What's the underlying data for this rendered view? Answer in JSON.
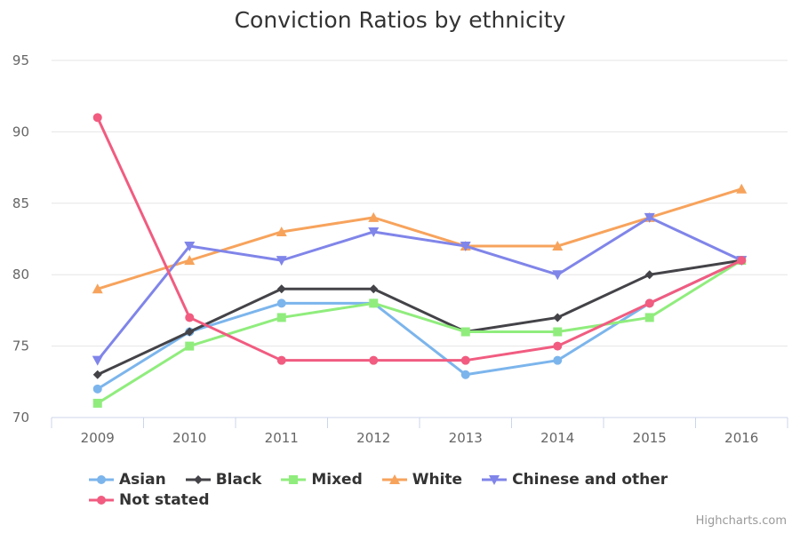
{
  "chart_data": {
    "type": "line",
    "title": "Conviction Ratios by ethnicity",
    "xlabel": "",
    "ylabel": "",
    "categories": [
      "2009",
      "2010",
      "2011",
      "2012",
      "2013",
      "2014",
      "2015",
      "2016"
    ],
    "ylim": [
      70,
      95
    ],
    "yticks": [
      70,
      75,
      80,
      85,
      90,
      95
    ],
    "grid": true,
    "legend_position": "bottom",
    "series": [
      {
        "name": "Asian",
        "color": "#7cb5ec",
        "marker": "circle",
        "values": [
          72,
          76,
          78,
          78,
          73,
          74,
          78,
          81
        ]
      },
      {
        "name": "Black",
        "color": "#434348",
        "marker": "diamond",
        "values": [
          73,
          76,
          79,
          79,
          76,
          77,
          80,
          81
        ]
      },
      {
        "name": "Mixed",
        "color": "#90ed7d",
        "marker": "square",
        "values": [
          71,
          75,
          77,
          78,
          76,
          76,
          77,
          81
        ]
      },
      {
        "name": "White",
        "color": "#f7a35c",
        "marker": "triangle",
        "values": [
          79,
          81,
          83,
          84,
          82,
          82,
          84,
          86
        ]
      },
      {
        "name": "Chinese and other",
        "color": "#8085e9",
        "marker": "triangle-down",
        "values": [
          74,
          82,
          81,
          83,
          82,
          80,
          84,
          81
        ]
      },
      {
        "name": "Not stated",
        "color": "#f15c80",
        "marker": "circle",
        "values": [
          91,
          77,
          74,
          74,
          74,
          75,
          78,
          81
        ]
      }
    ]
  },
  "credits": "Highcharts.com"
}
